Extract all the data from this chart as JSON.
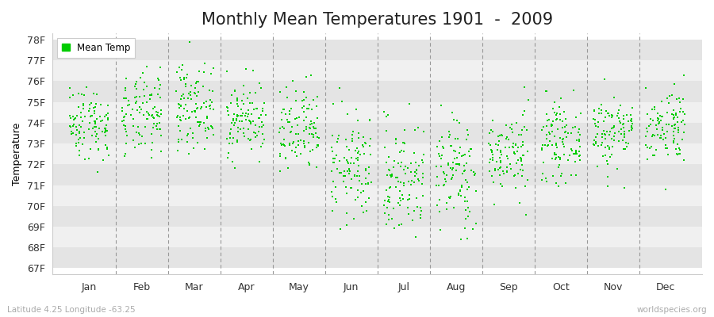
{
  "title": "Monthly Mean Temperatures 1901  -  2009",
  "ylabel": "Temperature",
  "xlabel_months": [
    "Jan",
    "Feb",
    "Mar",
    "Apr",
    "May",
    "Jun",
    "Jul",
    "Aug",
    "Sep",
    "Oct",
    "Nov",
    "Dec"
  ],
  "ytick_labels": [
    "67F",
    "68F",
    "69F",
    "70F",
    "71F",
    "72F",
    "73F",
    "74F",
    "75F",
    "76F",
    "77F",
    "78F"
  ],
  "ytick_values": [
    67,
    68,
    69,
    70,
    71,
    72,
    73,
    74,
    75,
    76,
    77,
    78
  ],
  "ylim": [
    66.7,
    78.3
  ],
  "dot_color": "#00cc00",
  "bg_color": "#ffffff",
  "plot_bg_color": "#ffffff",
  "band_color_light": "#f0f0f0",
  "band_color_dark": "#e4e4e4",
  "grid_line_color": "#999999",
  "legend_label": "Mean Temp",
  "subtitle_left": "Latitude 4.25 Longitude -63.25",
  "subtitle_right": "worldspecies.org",
  "title_fontsize": 15,
  "label_fontsize": 9,
  "month_means": [
    74.0,
    74.3,
    74.8,
    74.2,
    73.5,
    71.8,
    71.3,
    71.6,
    72.5,
    73.1,
    73.6,
    73.9
  ],
  "month_stds": [
    0.9,
    1.0,
    1.0,
    0.9,
    1.1,
    1.3,
    1.4,
    1.4,
    1.0,
    0.9,
    0.9,
    0.9
  ],
  "n_years": 109,
  "seed": 42,
  "dot_size": 3,
  "xlim": [
    0.3,
    12.7
  ]
}
